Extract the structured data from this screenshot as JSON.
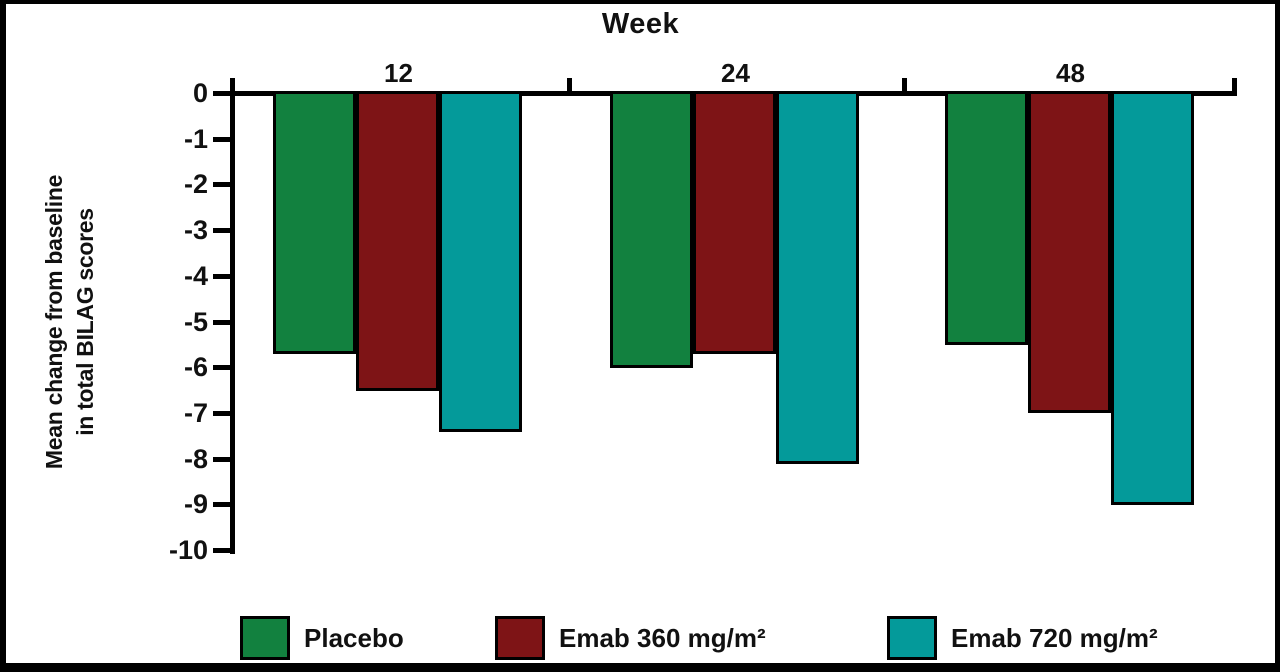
{
  "chart_data": {
    "type": "bar",
    "title": "Week",
    "orientation": "vertical-negative",
    "categories": [
      "12",
      "24",
      "48"
    ],
    "series": [
      {
        "name": "Placebo",
        "color": "#12813F",
        "values": [
          -5.7,
          -6.0,
          -5.5
        ]
      },
      {
        "name": "Emab 360 mg/m²",
        "color": "#7E1416",
        "values": [
          -6.5,
          -5.7,
          -7.0
        ]
      },
      {
        "name": "Emab 720 mg/m²",
        "color": "#049A9A",
        "values": [
          -7.4,
          -8.1,
          -9.0
        ]
      }
    ],
    "ylabel_line1": "Mean change from baseline",
    "ylabel_line2": "in total BILAG scores",
    "ylim": [
      0,
      -10
    ],
    "yticks": [
      0,
      -1,
      -2,
      -3,
      -4,
      -5,
      -6,
      -7,
      -8,
      -9,
      -10
    ],
    "grid": "off",
    "legend_position": "bottom",
    "axis_color": "#000000",
    "background_color": "#ffffff"
  }
}
